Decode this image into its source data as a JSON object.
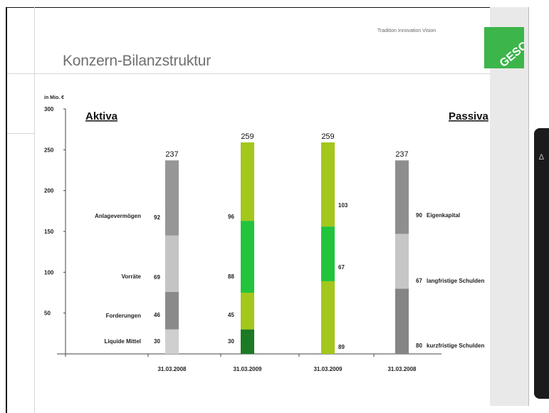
{
  "slide": {
    "title": "Konzern-Bilanzstruktur",
    "tagline": "Tradition  Innovation  Vision",
    "logo_text": "GESCO",
    "colors": {
      "green": "#3cb54a",
      "gray": "#e9e9e9"
    }
  },
  "chart_data": {
    "type": "bar",
    "stacked": true,
    "unit_label": "in Mio. €",
    "ylim": [
      0,
      300
    ],
    "yticks": [
      50,
      100,
      150,
      200,
      250,
      300
    ],
    "headers": {
      "left": "Aktiva",
      "right": "Passiva"
    },
    "categories": [
      "31.03.2008",
      "31.03.2009",
      "31.03.2009",
      "31.03.2008"
    ],
    "totals": [
      237,
      259,
      259,
      237
    ],
    "bars": [
      {
        "segments": [
          {
            "name": "Liquide Mittel",
            "value": 30,
            "color": "#cfcfcf"
          },
          {
            "name": "Forderungen",
            "value": 46,
            "color": "#8a8a8a"
          },
          {
            "name": "Vorräte",
            "value": 69,
            "color": "#c4c4c4"
          },
          {
            "name": "Anlagevermögen",
            "value": 92,
            "color": "#969696"
          }
        ]
      },
      {
        "segments": [
          {
            "name": "Liquide Mittel",
            "value": 30,
            "color": "#1c7a25"
          },
          {
            "name": "Forderungen",
            "value": 45,
            "color": "#a3c71a"
          },
          {
            "name": "Vorräte",
            "value": 88,
            "color": "#22c43c"
          },
          {
            "name": "Anlagevermögen",
            "value": 96,
            "color": "#a3c71a"
          }
        ]
      },
      {
        "segments": [
          {
            "name": "kurzfristige Schulden",
            "value": 89,
            "color": "#a3c71a"
          },
          {
            "name": "langfristige Schulden",
            "value": 67,
            "color": "#22c43c"
          },
          {
            "name": "Eigenkapital",
            "value": 103,
            "color": "#a3c71a"
          }
        ]
      },
      {
        "segments": [
          {
            "name": "kurzfristige Schulden",
            "value": 80,
            "color": "#858585"
          },
          {
            "name": "langfristige Schulden",
            "value": 67,
            "color": "#c6c6c6"
          },
          {
            "name": "Eigenkapital",
            "value": 90,
            "color": "#8e8e8e"
          }
        ]
      }
    ],
    "left_labels": [
      "Liquide Mittel",
      "Forderungen",
      "Vorräte",
      "Anlagevermögen"
    ],
    "right_labels": [
      "kurzfristige Schulden",
      "langfristige Schulden",
      "Eigenkapital"
    ]
  }
}
